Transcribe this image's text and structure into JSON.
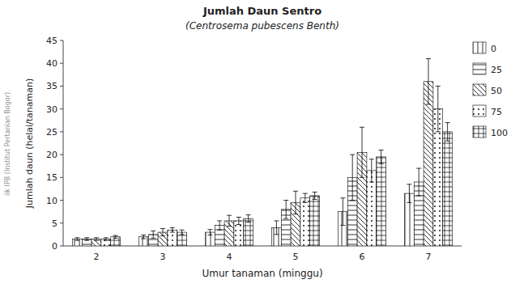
{
  "chart_data": {
    "type": "bar",
    "title": "Jumlah Daun Sentro",
    "subtitle": "(Centrosema pubescens Benth)",
    "x_label": "Umur tanaman (minggu)",
    "y_label": "Jumlah daun (helai/tanaman)",
    "categories": [
      "2",
      "3",
      "4",
      "5",
      "6",
      "7"
    ],
    "series": [
      {
        "name": "0",
        "color": "white",
        "values": [
          1.5,
          2.0,
          3.0,
          4.0,
          7.5,
          11.5
        ],
        "errors": [
          0.3,
          0.4,
          0.6,
          1.5,
          3.0,
          2.0
        ]
      },
      {
        "name": "25",
        "color": "white",
        "values": [
          1.5,
          2.5,
          4.5,
          8.0,
          15.0,
          14.0
        ],
        "errors": [
          0.3,
          0.8,
          1.0,
          2.0,
          5.0,
          3.0
        ]
      },
      {
        "name": "50",
        "color": "white",
        "values": [
          1.5,
          3.0,
          5.5,
          9.5,
          20.5,
          36.0
        ],
        "errors": [
          0.3,
          0.8,
          1.2,
          2.5,
          5.5,
          5.0
        ]
      },
      {
        "name": "75",
        "color": "white",
        "values": [
          1.5,
          3.5,
          5.5,
          10.5,
          16.5,
          30.0
        ],
        "errors": [
          0.3,
          0.5,
          0.8,
          1.0,
          2.5,
          5.0
        ]
      },
      {
        "name": "100",
        "color": "white",
        "values": [
          2.0,
          3.0,
          6.0,
          11.0,
          19.5,
          25.0
        ],
        "errors": [
          0.3,
          0.5,
          0.8,
          0.8,
          1.5,
          2.0
        ]
      }
    ],
    "ylim": [
      0,
      45
    ],
    "yticks": [
      0,
      5,
      10,
      15,
      20,
      25,
      30,
      35,
      40,
      45
    ],
    "grid": false,
    "legend": "right",
    "annotations": [
      "iik IPB (Institut Pertanian Bogor)"
    ]
  }
}
